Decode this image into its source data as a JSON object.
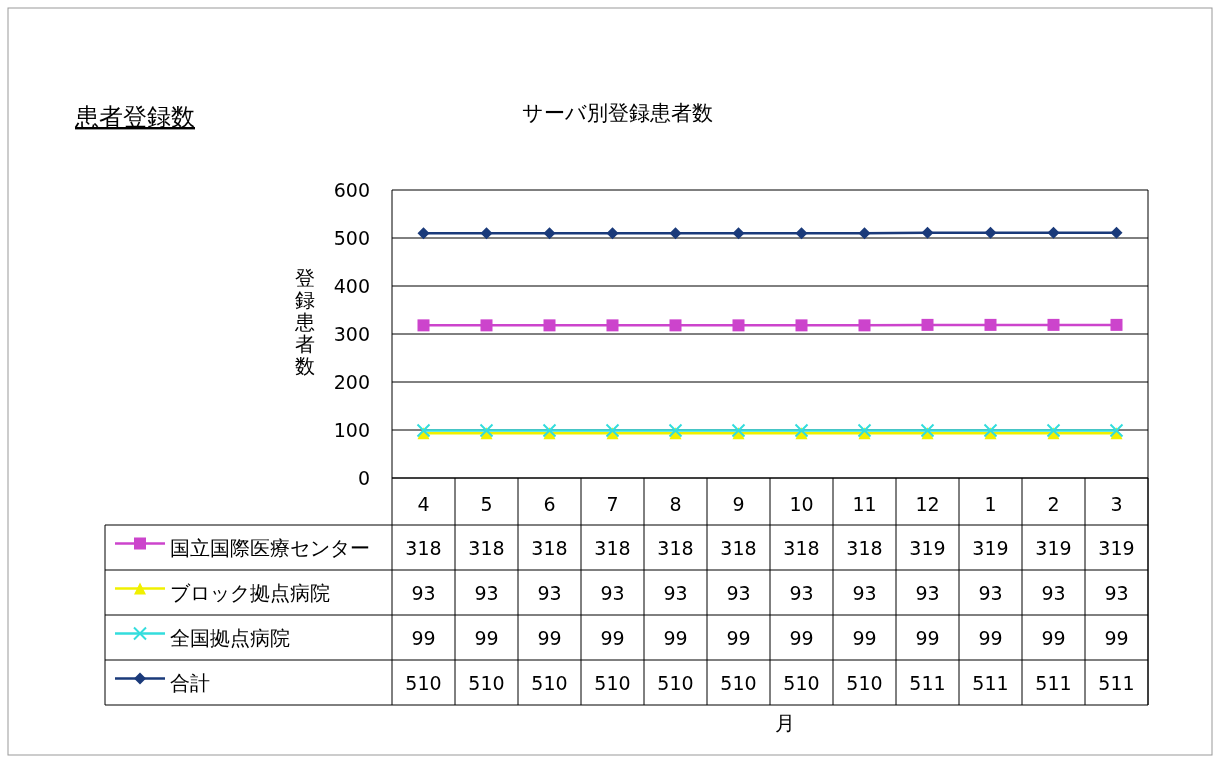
{
  "chart_data": {
    "type": "line",
    "title": "サーバ別登録患者数",
    "ylabel": "登録患者数",
    "annotations": [
      "患者登録数",
      "月"
    ],
    "categories": [
      "4",
      "5",
      "6",
      "7",
      "8",
      "9",
      "10",
      "11",
      "12",
      "1",
      "2",
      "3"
    ],
    "ylim": [
      0,
      600
    ],
    "yticks": [
      0,
      100,
      200,
      300,
      400,
      500,
      600
    ],
    "grid": "y",
    "legend": "bottom",
    "data_labels": true,
    "series": [
      {
        "name": "国立国際医療センター",
        "color": "#cc44cc",
        "marker": "square",
        "values": [
          318,
          318,
          318,
          318,
          318,
          318,
          318,
          318,
          319,
          319,
          319,
          319
        ]
      },
      {
        "name": "ブロック拠点病院",
        "color": "#f0f000",
        "marker": "triangle",
        "values": [
          93,
          93,
          93,
          93,
          93,
          93,
          93,
          93,
          93,
          93,
          93,
          93
        ]
      },
      {
        "name": "全国拠点病院",
        "color": "#33dddd",
        "marker": "cross",
        "values": [
          99,
          99,
          99,
          99,
          99,
          99,
          99,
          99,
          99,
          99,
          99,
          99
        ]
      },
      {
        "name": "合計",
        "color": "#1a3a7a",
        "marker": "diamond",
        "values": [
          510,
          510,
          510,
          510,
          510,
          510,
          510,
          510,
          511,
          511,
          511,
          511
        ]
      }
    ]
  }
}
